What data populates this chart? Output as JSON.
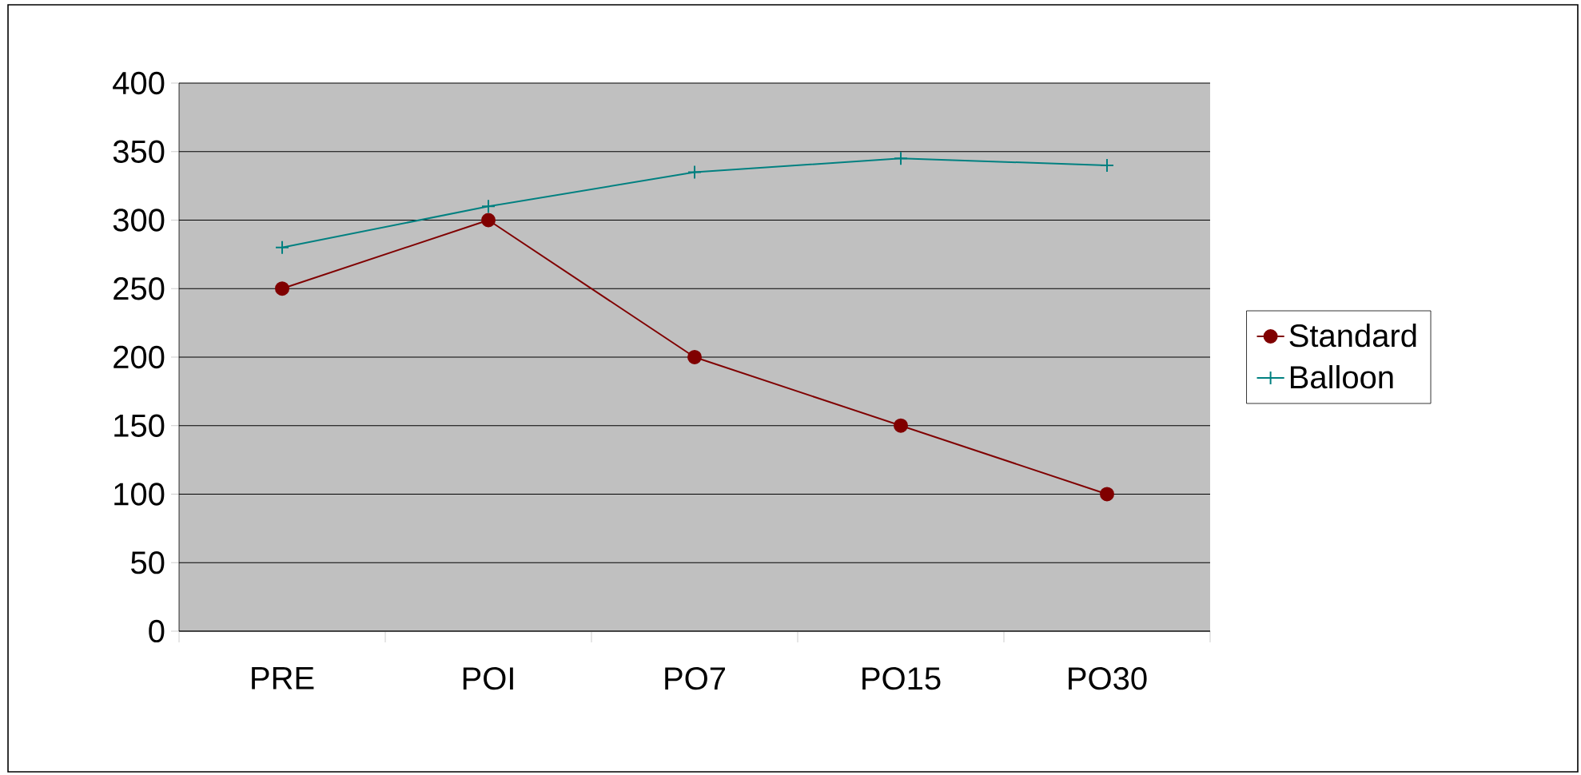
{
  "chart_data": {
    "type": "line",
    "categories": [
      "PRE",
      "POI",
      "PO7",
      "PO15",
      "PO30"
    ],
    "series": [
      {
        "name": "Standard",
        "color": "#800000",
        "marker": "circle",
        "values": [
          250,
          300,
          200,
          150,
          100
        ]
      },
      {
        "name": "Balloon",
        "color": "#008080",
        "marker": "cross",
        "values": [
          280,
          310,
          335,
          345,
          340
        ]
      }
    ],
    "ylim": [
      0,
      400
    ],
    "yticks": [
      0,
      50,
      100,
      150,
      200,
      250,
      300,
      350,
      400
    ],
    "grid": "y",
    "legend": "right"
  }
}
